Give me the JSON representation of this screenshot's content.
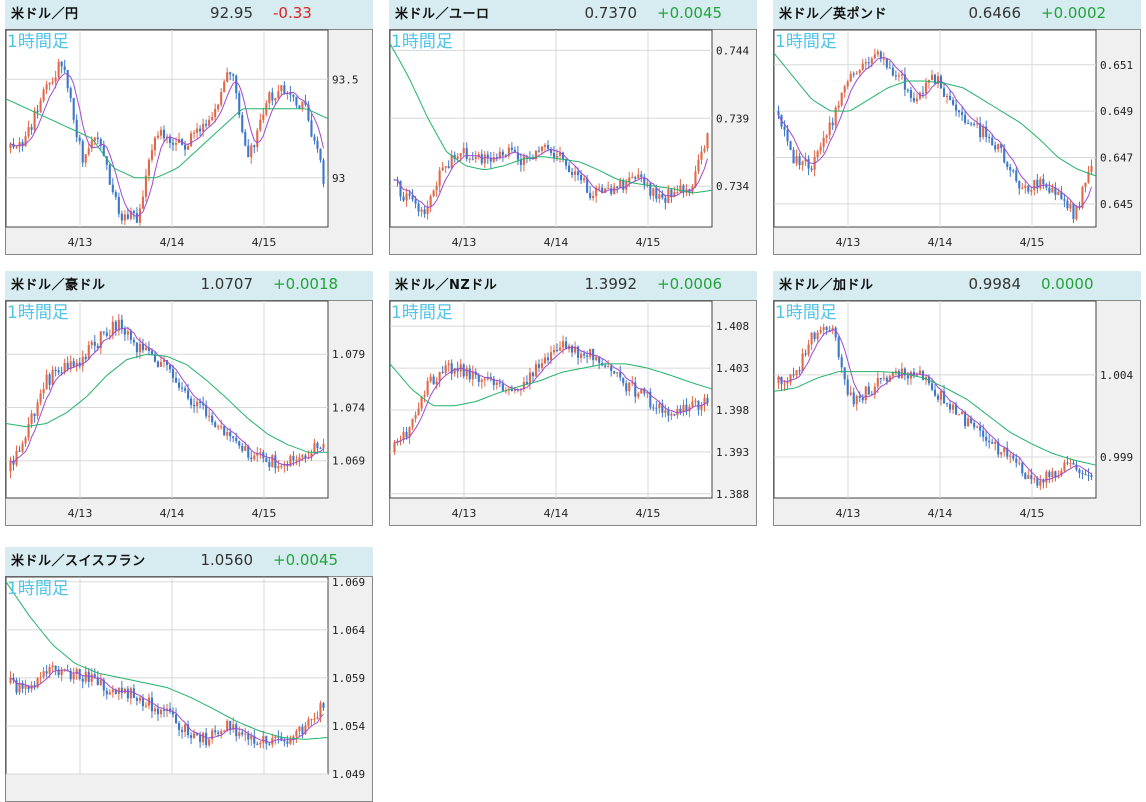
{
  "colors": {
    "header_bg": "#d6ecf0",
    "up": "#e0694a",
    "down": "#3d78c8",
    "ma_short": "#a04ad0",
    "ma_long": "#22b36a",
    "positive": "#22a33a",
    "negative": "#e02020",
    "timeframe_label": "#4fc3e8"
  },
  "panels": [
    {
      "pair": "米ドル／円",
      "price": "92.95",
      "change": "-0.33",
      "direction": "negative"
    },
    {
      "pair": "米ドル／ユーロ",
      "price": "0.7370",
      "change": "+0.0045",
      "direction": "positive"
    },
    {
      "pair": "米ドル／英ポンド",
      "price": "0.6466",
      "change": "+0.0002",
      "direction": "positive"
    },
    {
      "pair": "米ドル／豪ドル",
      "price": "1.0707",
      "change": "+0.0018",
      "direction": "positive"
    },
    {
      "pair": "米ドル／NZドル",
      "price": "1.3992",
      "change": "+0.0006",
      "direction": "positive"
    },
    {
      "pair": "米ドル／加ドル",
      "price": "0.9984",
      "change": "0.0000",
      "direction": "positive"
    },
    {
      "pair": "米ドル／スイスフラン",
      "price": "1.0560",
      "change": "+0.0045",
      "direction": "positive"
    }
  ],
  "chart_data": [
    {
      "type": "candlestick",
      "timeframe": "1時間足",
      "x_ticks": [
        "4/13",
        "4/14",
        "4/15"
      ],
      "y_ticks": [
        "93.5",
        "93"
      ],
      "y_tick_values": [
        93.5,
        93.0
      ],
      "ylim": [
        92.75,
        93.75
      ],
      "key_values": [
        93.15,
        93.2,
        93.45,
        93.6,
        93.1,
        93.2,
        92.8,
        92.8,
        93.25,
        93.15,
        93.2,
        93.3,
        93.55,
        93.1,
        93.4,
        93.45,
        93.35,
        93.0
      ],
      "ma_long": [
        93.4,
        93.35,
        93.3,
        93.25,
        93.2,
        93.05,
        93.0,
        93.0,
        93.05,
        93.15,
        93.25,
        93.35,
        93.35,
        93.35,
        93.35,
        93.3
      ]
    },
    {
      "type": "candlestick",
      "timeframe": "1時間足",
      "x_ticks": [
        "4/13",
        "4/14",
        "4/15"
      ],
      "y_ticks": [
        "0.744",
        "0.739",
        "0.734"
      ],
      "y_tick_values": [
        0.744,
        0.739,
        0.734
      ],
      "ylim": [
        0.731,
        0.7455
      ],
      "key_values": [
        0.7345,
        0.733,
        0.732,
        0.735,
        0.7365,
        0.736,
        0.7362,
        0.7365,
        0.7358,
        0.737,
        0.7362,
        0.735,
        0.7335,
        0.7338,
        0.734,
        0.7345,
        0.733,
        0.7335,
        0.734,
        0.7375
      ],
      "ma_long": [
        0.7445,
        0.742,
        0.739,
        0.7365,
        0.7355,
        0.7352,
        0.7355,
        0.736,
        0.7362,
        0.736,
        0.7358,
        0.7352,
        0.7345,
        0.7342,
        0.734,
        0.7338,
        0.7335,
        0.7337
      ]
    },
    {
      "type": "candlestick",
      "timeframe": "1時間足",
      "x_ticks": [
        "4/13",
        "4/14",
        "4/15"
      ],
      "y_ticks": [
        "0.651",
        "0.649",
        "0.647",
        "0.645"
      ],
      "y_tick_values": [
        0.651,
        0.649,
        0.647,
        0.645
      ],
      "ylim": [
        0.644,
        0.6525
      ],
      "key_values": [
        0.649,
        0.647,
        0.6465,
        0.648,
        0.6505,
        0.651,
        0.6515,
        0.6505,
        0.6495,
        0.6505,
        0.6495,
        0.6485,
        0.648,
        0.647,
        0.6455,
        0.646,
        0.6455,
        0.6445,
        0.6465
      ],
      "ma_long": [
        0.6515,
        0.6505,
        0.6495,
        0.649,
        0.649,
        0.6495,
        0.65,
        0.6503,
        0.6503,
        0.6502,
        0.65,
        0.6495,
        0.649,
        0.6485,
        0.6478,
        0.647,
        0.6465,
        0.6462
      ]
    },
    {
      "type": "candlestick",
      "timeframe": "1時間足",
      "x_ticks": [
        "4/13",
        "4/14",
        "4/15"
      ],
      "y_ticks": [
        "1.079",
        "1.074",
        "1.069"
      ],
      "y_tick_values": [
        1.079,
        1.074,
        1.069
      ],
      "ylim": [
        1.0655,
        1.084
      ],
      "key_values": [
        1.068,
        1.0715,
        1.0765,
        1.0775,
        1.0785,
        1.0805,
        1.082,
        1.0795,
        1.0785,
        1.077,
        1.0745,
        1.073,
        1.0715,
        1.0695,
        1.069,
        1.0688,
        1.0695,
        1.0705
      ],
      "ma_long": [
        1.0725,
        1.0722,
        1.0725,
        1.0735,
        1.075,
        1.077,
        1.0785,
        1.079,
        1.0788,
        1.078,
        1.0765,
        1.0748,
        1.073,
        1.0715,
        1.0705,
        1.0698,
        1.0698
      ]
    },
    {
      "type": "candlestick",
      "timeframe": "1時間足",
      "x_ticks": [
        "4/13",
        "4/14",
        "4/15"
      ],
      "y_ticks": [
        "1.408",
        "1.403",
        "1.398",
        "1.393",
        "1.388"
      ],
      "y_tick_values": [
        1.408,
        1.403,
        1.398,
        1.393,
        1.388
      ],
      "ylim": [
        1.3875,
        1.411
      ],
      "key_values": [
        1.393,
        1.396,
        1.401,
        1.403,
        1.4025,
        1.4015,
        1.4005,
        1.401,
        1.4035,
        1.406,
        1.405,
        1.4045,
        1.402,
        1.4005,
        1.399,
        1.398,
        1.3985,
        1.399
      ],
      "ma_long": [
        1.4035,
        1.4005,
        1.3985,
        1.3985,
        1.399,
        1.4,
        1.4008,
        1.4015,
        1.4025,
        1.403,
        1.4035,
        1.4035,
        1.403,
        1.4022,
        1.4013,
        1.4005
      ]
    },
    {
      "type": "candlestick",
      "timeframe": "1時間足",
      "x_ticks": [
        "4/13",
        "4/14",
        "4/15"
      ],
      "y_ticks": [
        "1.004",
        "0.999"
      ],
      "y_tick_values": [
        1.004,
        0.999
      ],
      "ylim": [
        0.9965,
        1.0085
      ],
      "key_values": [
        1.0035,
        1.0038,
        1.0065,
        1.007,
        1.0025,
        1.003,
        1.004,
        1.0042,
        1.0038,
        1.0025,
        1.0015,
        1.0005,
        0.9995,
        0.9985,
        0.9975,
        0.998,
        0.9985,
        0.998
      ],
      "ma_long": [
        1.003,
        1.0032,
        1.0038,
        1.0042,
        1.0042,
        1.0042,
        1.0041,
        1.0038,
        1.0032,
        1.0025,
        1.0015,
        1.0005,
        0.9998,
        0.9992,
        0.9988,
        0.9985
      ]
    },
    {
      "type": "candlestick",
      "timeframe": "1時間足",
      "x_ticks": [],
      "y_ticks": [
        "1.069",
        "1.064",
        "1.059",
        "1.054",
        "1.049"
      ],
      "y_tick_values": [
        1.069,
        1.064,
        1.059,
        1.054,
        1.049
      ],
      "ylim": [
        1.049,
        1.0695
      ],
      "key_values": [
        1.0585,
        1.0575,
        1.06,
        1.0595,
        1.059,
        1.058,
        1.0575,
        1.0565,
        1.0555,
        1.0535,
        1.0525,
        1.054,
        1.053,
        1.0525,
        1.0525,
        1.0535,
        1.0565
      ],
      "ma_long": [
        1.069,
        1.0655,
        1.0625,
        1.0605,
        1.0595,
        1.059,
        1.0585,
        1.058,
        1.057,
        1.0558,
        1.0545,
        1.0535,
        1.0528,
        1.0526,
        1.0528
      ]
    }
  ]
}
